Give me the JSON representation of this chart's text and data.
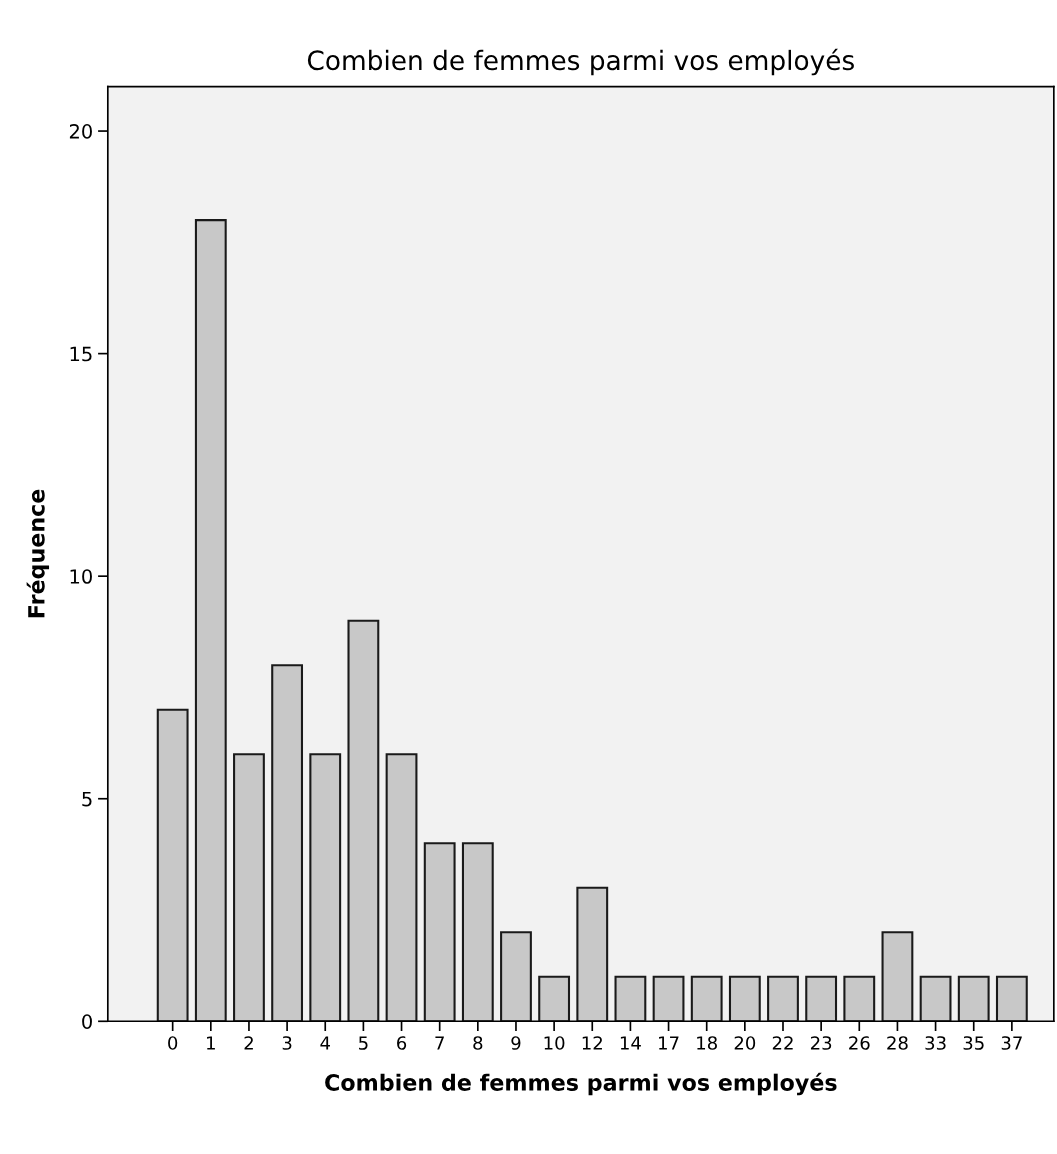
{
  "chart_data": {
    "type": "bar",
    "title": "Combien de femmes parmi vos employés",
    "xlabel": "Combien de femmes parmi vos employés",
    "ylabel": "Fréquence",
    "categories": [
      "0",
      "1",
      "2",
      "3",
      "4",
      "5",
      "6",
      "7",
      "8",
      "9",
      "10",
      "12",
      "14",
      "17",
      "18",
      "20",
      "22",
      "23",
      "26",
      "28",
      "33",
      "35",
      "37"
    ],
    "values": [
      7,
      18,
      6,
      8,
      6,
      9,
      6,
      4,
      4,
      2,
      1,
      3,
      1,
      1,
      1,
      1,
      1,
      1,
      1,
      2,
      1,
      1,
      1
    ],
    "color": "#c8c8c8",
    "ylim": [
      0,
      21
    ],
    "yticks": [
      0,
      5,
      10,
      15,
      20
    ],
    "grid": false
  }
}
